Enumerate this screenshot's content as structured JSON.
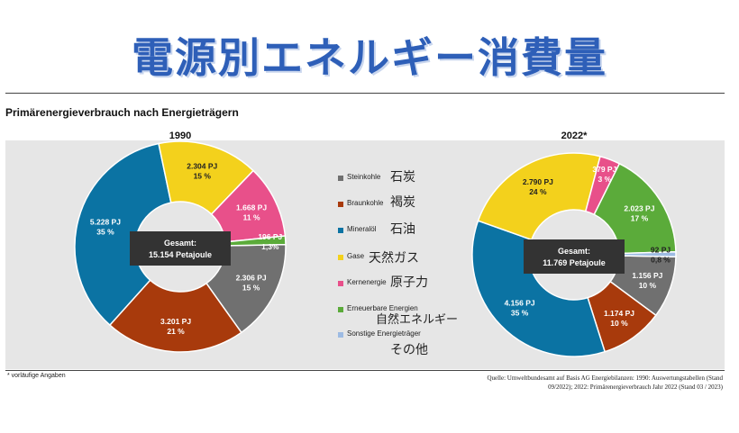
{
  "title": "電源別エネルギー消費量",
  "subtitle": "Primärenergieverbrauch nach Energieträgern",
  "footnote": "* vorläufige Angaben",
  "source_line1": "Quelle: Umweltbundesamt auf Basis AG Energiebilanzen: 1990: Auswertungstabellen (Stand",
  "source_line2": "09/2022); 2022: Primärenergieverbrauch Jahr 2022 (Stand 03 / 2023)",
  "legend": [
    {
      "de": "Steinkohle",
      "jp": "石炭",
      "color": "#707070"
    },
    {
      "de": "Braunkohle",
      "jp": "褐炭",
      "color": "#a83a0c"
    },
    {
      "de": "Mineralöl",
      "jp": "石油",
      "color": "#0b73a3"
    },
    {
      "de": "Gase",
      "jp": "天然ガス",
      "color": "#f3d11c"
    },
    {
      "de": "Kernenergie",
      "jp": "原子力",
      "color": "#e8508a"
    },
    {
      "de": "Erneuerbare Energien",
      "jp": "自然エネルギー",
      "color": "#5bab3a"
    },
    {
      "de": "Sonstige Energieträger",
      "jp": "その他",
      "color": "#9dbbe3"
    }
  ],
  "chart_data": [
    {
      "type": "pie",
      "title": "1990",
      "total_label": "Gesamt:",
      "total_value": "15.154 Petajoule",
      "unit": "PJ",
      "slices": [
        {
          "name": "Steinkohle",
          "value": 2306,
          "pj": "2.306 PJ",
          "pct": "15 %",
          "color": "#707070"
        },
        {
          "name": "Braunkohle",
          "value": 3201,
          "pj": "3.201 PJ",
          "pct": "21 %",
          "color": "#a83a0c"
        },
        {
          "name": "Mineralöl",
          "value": 5228,
          "pj": "5.228 PJ",
          "pct": "35 %",
          "color": "#0b73a3"
        },
        {
          "name": "Gase",
          "value": 2304,
          "pj": "2.304 PJ",
          "pct": "15 %",
          "color": "#f3d11c"
        },
        {
          "name": "Kernenergie",
          "value": 1668,
          "pj": "1.668 PJ",
          "pct": "11 %",
          "color": "#e8508a"
        },
        {
          "name": "Erneuerbare Energien",
          "value": 196,
          "pj": "196 PJ",
          "pct": "1,3%",
          "color": "#5bab3a"
        }
      ]
    },
    {
      "type": "pie",
      "title": "2022*",
      "total_label": "Gesamt:",
      "total_value": "11.769 Petajoule",
      "unit": "PJ",
      "slices": [
        {
          "name": "Steinkohle",
          "value": 1156,
          "pj": "1.156 PJ",
          "pct": "10 %",
          "color": "#707070"
        },
        {
          "name": "Braunkohle",
          "value": 1174,
          "pj": "1.174 PJ",
          "pct": "10 %",
          "color": "#a83a0c"
        },
        {
          "name": "Mineralöl",
          "value": 4156,
          "pj": "4.156 PJ",
          "pct": "35 %",
          "color": "#0b73a3"
        },
        {
          "name": "Gase",
          "value": 2790,
          "pj": "2.790 PJ",
          "pct": "24 %",
          "color": "#f3d11c"
        },
        {
          "name": "Kernenergie",
          "value": 379,
          "pj": "379 PJ",
          "pct": "3 %",
          "color": "#e8508a"
        },
        {
          "name": "Erneuerbare Energien",
          "value": 2023,
          "pj": "2.023 PJ",
          "pct": "17 %",
          "color": "#5bab3a"
        },
        {
          "name": "Sonstige Energieträger",
          "value": 92,
          "pj": "92 PJ",
          "pct": "0,8 %",
          "color": "#9dbbe3"
        }
      ]
    }
  ]
}
